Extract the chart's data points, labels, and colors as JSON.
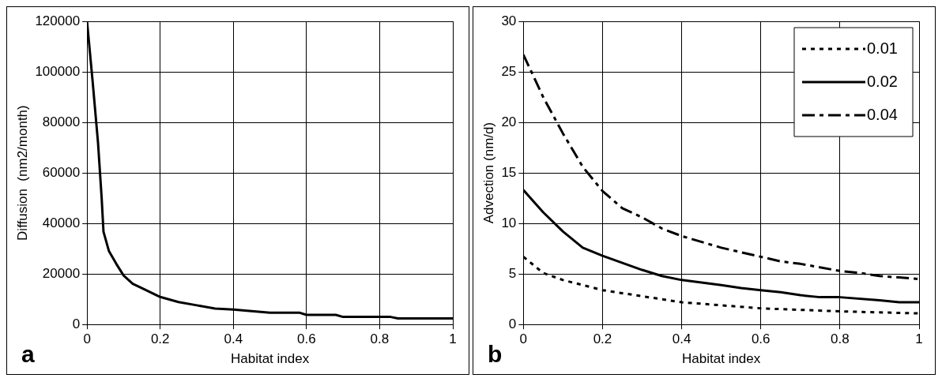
{
  "chart_data": [
    {
      "type": "line",
      "xlabel": "Habitat index",
      "ylabel": "Diffusion  (nm2/month)",
      "annotations": [
        "a"
      ],
      "xlim": [
        0,
        1
      ],
      "xticks": [
        0,
        0.2,
        0.4,
        0.6,
        0.8,
        1
      ],
      "ylim": [
        0,
        120000
      ],
      "yticks": [
        0,
        20000,
        40000,
        60000,
        80000,
        100000,
        120000
      ],
      "grid": true,
      "legend": false,
      "series": [
        {
          "color": "#000000",
          "line_style": "solid",
          "x": [
            0,
            0.015,
            0.03,
            0.04,
            0.045,
            0.06,
            0.08,
            0.1,
            0.125,
            0.15,
            0.2,
            0.25,
            0.3,
            0.35,
            0.4,
            0.5,
            0.58,
            0.6,
            0.68,
            0.7,
            0.83,
            0.85,
            1
          ],
          "values": [
            120000,
            96700,
            72000,
            50000,
            36700,
            29000,
            24000,
            19400,
            16100,
            14400,
            10900,
            8900,
            7600,
            6300,
            5900,
            4700,
            4700,
            3800,
            3800,
            3000,
            3000,
            2400,
            2400
          ]
        }
      ]
    },
    {
      "type": "line",
      "xlabel": "Habitat index",
      "ylabel": "Advection (nm/d)",
      "annotations": [
        "b"
      ],
      "xlim": [
        0,
        1
      ],
      "xticks": [
        0,
        0.2,
        0.4,
        0.6,
        0.8,
        1
      ],
      "ylim": [
        0,
        30
      ],
      "yticks": [
        0,
        5,
        10,
        15,
        20,
        25,
        30
      ],
      "grid": true,
      "legend": "top right",
      "series": [
        {
          "name": "0.01",
          "color": "#000000",
          "line_style": "dotted",
          "x": [
            0,
            0.05,
            0.1,
            0.2,
            0.3,
            0.4,
            0.5,
            0.6,
            0.8,
            1
          ],
          "values": [
            6.7,
            5.1,
            4.4,
            3.4,
            2.8,
            2.2,
            1.9,
            1.6,
            1.3,
            1.1
          ]
        },
        {
          "name": "0.02",
          "color": "#000000",
          "line_style": "solid",
          "x": [
            0,
            0.05,
            0.1,
            0.15,
            0.2,
            0.3,
            0.35,
            0.4,
            0.5,
            0.55,
            0.6,
            0.65,
            0.7,
            0.75,
            0.8,
            0.9,
            0.95,
            1
          ],
          "values": [
            13.3,
            11.1,
            9.2,
            7.6,
            6.8,
            5.4,
            4.8,
            4.4,
            3.9,
            3.6,
            3.4,
            3.2,
            2.9,
            2.7,
            2.7,
            2.4,
            2.2,
            2.2
          ]
        },
        {
          "name": "0.04",
          "color": "#000000",
          "line_style": "dashed",
          "x": [
            0,
            0.05,
            0.1,
            0.15,
            0.2,
            0.25,
            0.3,
            0.35,
            0.4,
            0.5,
            0.6,
            0.65,
            0.7,
            0.8,
            0.85,
            0.9,
            1
          ],
          "values": [
            26.7,
            22.5,
            18.9,
            15.6,
            13.2,
            11.5,
            10.6,
            9.5,
            8.75,
            7.6,
            6.7,
            6.25,
            6.0,
            5.3,
            5.1,
            4.8,
            4.5
          ]
        }
      ]
    }
  ]
}
